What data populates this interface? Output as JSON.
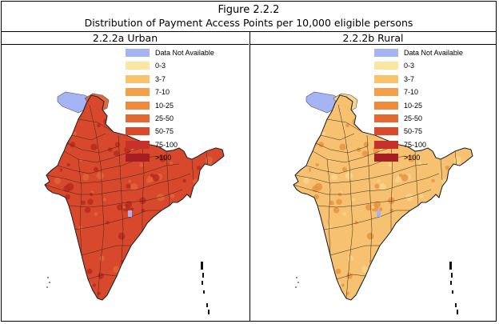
{
  "figure": {
    "title": "Figure 2.2.2",
    "subtitle": "Distribution of Payment Access Points per 10,000 eligible persons"
  },
  "panels": [
    {
      "title": "2.2.2a Urban",
      "fill": "#d8482c",
      "fill_light": "#e2673a",
      "fill_dark": "#b8281e"
    },
    {
      "title": "2.2.2b Rural",
      "fill": "#f6c170",
      "fill_light": "#f9d68c",
      "fill_dark": "#e8913f"
    }
  ],
  "legend": [
    {
      "label": "Data Not Available",
      "color": "#a5b4f5"
    },
    {
      "label": "0-3",
      "color": "#fde6a0"
    },
    {
      "label": "3-7",
      "color": "#f7c46b"
    },
    {
      "label": "7-10",
      "color": "#f3a04c"
    },
    {
      "label": "10-25",
      "color": "#ee8b3a"
    },
    {
      "label": "25-50",
      "color": "#e36931"
    },
    {
      "label": "50-75",
      "color": "#d9492a"
    },
    {
      "label": "75-100",
      "color": "#c8302a"
    },
    {
      "label": ">100",
      "color": "#a51e22"
    }
  ],
  "colors": {
    "border": "#000000",
    "district_line": "#3a2a1a",
    "no_data": "#a5b4f5"
  }
}
